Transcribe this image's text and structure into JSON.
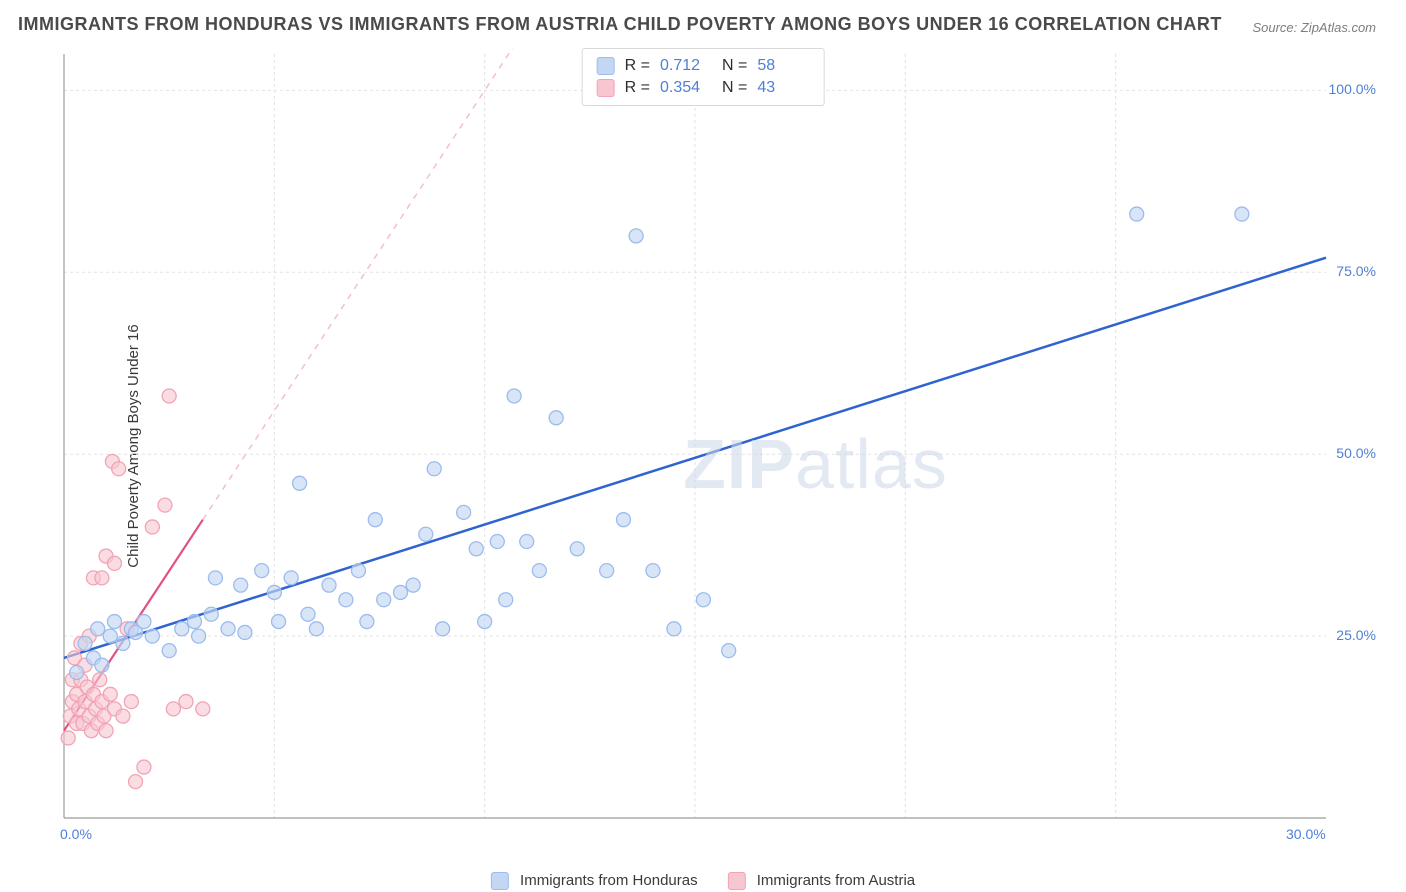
{
  "title": "IMMIGRANTS FROM HONDURAS VS IMMIGRANTS FROM AUSTRIA CHILD POVERTY AMONG BOYS UNDER 16 CORRELATION CHART",
  "source": "Source: ZipAtlas.com",
  "watermark_bold": "ZIP",
  "watermark_light": "atlas",
  "y_axis_label": "Child Poverty Among Boys Under 16",
  "chart": {
    "type": "scatter",
    "background_color": "#ffffff",
    "grid_color": "#e2e2e2",
    "grid_dash": "3,3",
    "axis_color": "#9c9c9c",
    "tick_label_color": "#4f7fd6",
    "tick_fontsize": 14,
    "xlim": [
      0,
      30
    ],
    "ylim": [
      0,
      105
    ],
    "x_ticks": [
      {
        "value": 0,
        "label": "0.0%"
      },
      {
        "value": 30,
        "label": "30.0%"
      }
    ],
    "y_ticks": [
      {
        "value": 25,
        "label": "25.0%"
      },
      {
        "value": 50,
        "label": "50.0%"
      },
      {
        "value": 75,
        "label": "75.0%"
      },
      {
        "value": 100,
        "label": "100.0%"
      }
    ],
    "x_minor_grid": [
      5,
      10,
      15,
      20,
      25
    ],
    "series": [
      {
        "name": "Immigrants from Honduras",
        "legend_label": "Immigrants from Honduras",
        "marker_color": "#9cbced",
        "marker_fill": "#c3d7f3",
        "marker_fill_opacity": 0.65,
        "marker_radius": 7,
        "trend_color": "#2f64d0",
        "trend_width": 2.5,
        "trend_solid": true,
        "trend_start": {
          "x": 0,
          "y": 22
        },
        "trend_end": {
          "x": 30,
          "y": 77
        },
        "stats": {
          "R": "0.712",
          "N": "58"
        },
        "points": [
          {
            "x": 0.3,
            "y": 20
          },
          {
            "x": 0.5,
            "y": 24
          },
          {
            "x": 0.7,
            "y": 22
          },
          {
            "x": 0.8,
            "y": 26
          },
          {
            "x": 0.9,
            "y": 21
          },
          {
            "x": 1.1,
            "y": 25
          },
          {
            "x": 1.2,
            "y": 27
          },
          {
            "x": 1.4,
            "y": 24
          },
          {
            "x": 1.6,
            "y": 26
          },
          {
            "x": 1.7,
            "y": 25.5
          },
          {
            "x": 1.9,
            "y": 27
          },
          {
            "x": 2.1,
            "y": 25
          },
          {
            "x": 2.5,
            "y": 23
          },
          {
            "x": 2.8,
            "y": 26
          },
          {
            "x": 3.1,
            "y": 27
          },
          {
            "x": 3.2,
            "y": 25
          },
          {
            "x": 3.5,
            "y": 28
          },
          {
            "x": 3.6,
            "y": 33
          },
          {
            "x": 3.9,
            "y": 26
          },
          {
            "x": 4.2,
            "y": 32
          },
          {
            "x": 4.3,
            "y": 25.5
          },
          {
            "x": 4.7,
            "y": 34
          },
          {
            "x": 5.0,
            "y": 31
          },
          {
            "x": 5.1,
            "y": 27
          },
          {
            "x": 5.4,
            "y": 33
          },
          {
            "x": 5.6,
            "y": 46
          },
          {
            "x": 5.8,
            "y": 28
          },
          {
            "x": 6.0,
            "y": 26
          },
          {
            "x": 6.3,
            "y": 32
          },
          {
            "x": 6.7,
            "y": 30
          },
          {
            "x": 7.0,
            "y": 34
          },
          {
            "x": 7.2,
            "y": 27
          },
          {
            "x": 7.4,
            "y": 41
          },
          {
            "x": 7.6,
            "y": 30
          },
          {
            "x": 8.0,
            "y": 31
          },
          {
            "x": 8.3,
            "y": 32
          },
          {
            "x": 8.6,
            "y": 39
          },
          {
            "x": 8.8,
            "y": 48
          },
          {
            "x": 9.0,
            "y": 26
          },
          {
            "x": 9.5,
            "y": 42
          },
          {
            "x": 9.8,
            "y": 37
          },
          {
            "x": 10.0,
            "y": 27
          },
          {
            "x": 10.3,
            "y": 38
          },
          {
            "x": 10.5,
            "y": 30
          },
          {
            "x": 10.7,
            "y": 58
          },
          {
            "x": 11.0,
            "y": 38
          },
          {
            "x": 11.3,
            "y": 34
          },
          {
            "x": 11.7,
            "y": 55
          },
          {
            "x": 12.2,
            "y": 37
          },
          {
            "x": 12.9,
            "y": 34
          },
          {
            "x": 13.3,
            "y": 41
          },
          {
            "x": 13.6,
            "y": 80
          },
          {
            "x": 14.0,
            "y": 34
          },
          {
            "x": 14.5,
            "y": 26
          },
          {
            "x": 15.2,
            "y": 30
          },
          {
            "x": 15.8,
            "y": 23
          },
          {
            "x": 25.5,
            "y": 83
          },
          {
            "x": 28.0,
            "y": 83
          }
        ]
      },
      {
        "name": "Immigrants from Austria",
        "legend_label": "Immigrants from Austria",
        "marker_color": "#f2a3b5",
        "marker_fill": "#f7c6d1",
        "marker_fill_opacity": 0.6,
        "marker_radius": 7,
        "trend_color": "#e35080",
        "trend_width": 2.2,
        "trend_extend_color": "#f4bfc9",
        "trend_solid": false,
        "trend_start": {
          "x": 0,
          "y": 12
        },
        "trend_end": {
          "x": 3.3,
          "y": 41
        },
        "trend_extend_end": {
          "x": 12.5,
          "y": 122
        },
        "stats": {
          "R": "0.354",
          "N": "43"
        },
        "points": [
          {
            "x": 0.1,
            "y": 11
          },
          {
            "x": 0.15,
            "y": 14
          },
          {
            "x": 0.2,
            "y": 16
          },
          {
            "x": 0.2,
            "y": 19
          },
          {
            "x": 0.25,
            "y": 22
          },
          {
            "x": 0.3,
            "y": 13
          },
          {
            "x": 0.3,
            "y": 17
          },
          {
            "x": 0.35,
            "y": 15
          },
          {
            "x": 0.4,
            "y": 19
          },
          {
            "x": 0.4,
            "y": 24
          },
          {
            "x": 0.45,
            "y": 13
          },
          {
            "x": 0.5,
            "y": 16
          },
          {
            "x": 0.5,
            "y": 21
          },
          {
            "x": 0.55,
            "y": 18
          },
          {
            "x": 0.6,
            "y": 14
          },
          {
            "x": 0.6,
            "y": 25
          },
          {
            "x": 0.65,
            "y": 12
          },
          {
            "x": 0.7,
            "y": 17
          },
          {
            "x": 0.7,
            "y": 33
          },
          {
            "x": 0.75,
            "y": 15
          },
          {
            "x": 0.8,
            "y": 13
          },
          {
            "x": 0.85,
            "y": 19
          },
          {
            "x": 0.9,
            "y": 16
          },
          {
            "x": 0.9,
            "y": 33
          },
          {
            "x": 0.95,
            "y": 14
          },
          {
            "x": 1.0,
            "y": 12
          },
          {
            "x": 1.0,
            "y": 36
          },
          {
            "x": 1.1,
            "y": 17
          },
          {
            "x": 1.15,
            "y": 49
          },
          {
            "x": 1.2,
            "y": 15
          },
          {
            "x": 1.2,
            "y": 35
          },
          {
            "x": 1.3,
            "y": 48
          },
          {
            "x": 1.4,
            "y": 14
          },
          {
            "x": 1.5,
            "y": 26
          },
          {
            "x": 1.6,
            "y": 16
          },
          {
            "x": 1.7,
            "y": 5
          },
          {
            "x": 1.9,
            "y": 7
          },
          {
            "x": 2.1,
            "y": 40
          },
          {
            "x": 2.4,
            "y": 43
          },
          {
            "x": 2.5,
            "y": 58
          },
          {
            "x": 2.6,
            "y": 15
          },
          {
            "x": 2.9,
            "y": 16
          },
          {
            "x": 3.3,
            "y": 15
          }
        ]
      }
    ]
  },
  "legend": {
    "label_R": "R =",
    "label_N": "N ="
  }
}
